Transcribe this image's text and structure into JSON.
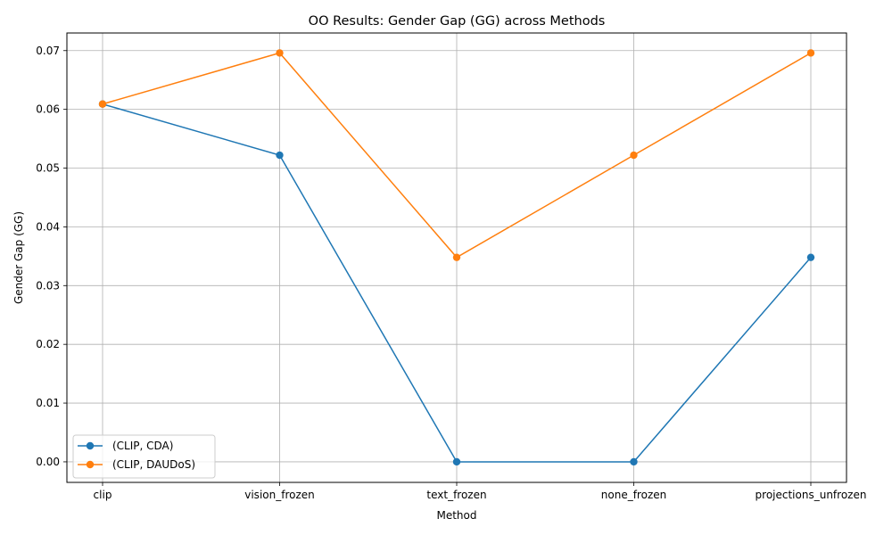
{
  "chart_data": {
    "type": "line",
    "title": "OO Results: Gender Gap (GG) across Methods",
    "xlabel": "Method",
    "ylabel": "Gender Gap (GG)",
    "categories": [
      "clip",
      "vision_frozen",
      "text_frozen",
      "none_frozen",
      "projections_unfrozen"
    ],
    "ylim": [
      -0.0035,
      0.073
    ],
    "yticks": [
      "0.00",
      "0.01",
      "0.02",
      "0.03",
      "0.04",
      "0.05",
      "0.06",
      "0.07"
    ],
    "grid": true,
    "legend_position": "lower-left",
    "series": [
      {
        "name": "(CLIP, CDA)",
        "color": "#1f77b4",
        "marker": "circle",
        "values": [
          0.0609,
          0.0522,
          0.0,
          0.0,
          0.0348
        ]
      },
      {
        "name": "(CLIP, DAUDoS)",
        "color": "#ff7f0e",
        "marker": "circle",
        "values": [
          0.0609,
          0.0696,
          0.0348,
          0.0522,
          0.0696
        ]
      }
    ]
  }
}
